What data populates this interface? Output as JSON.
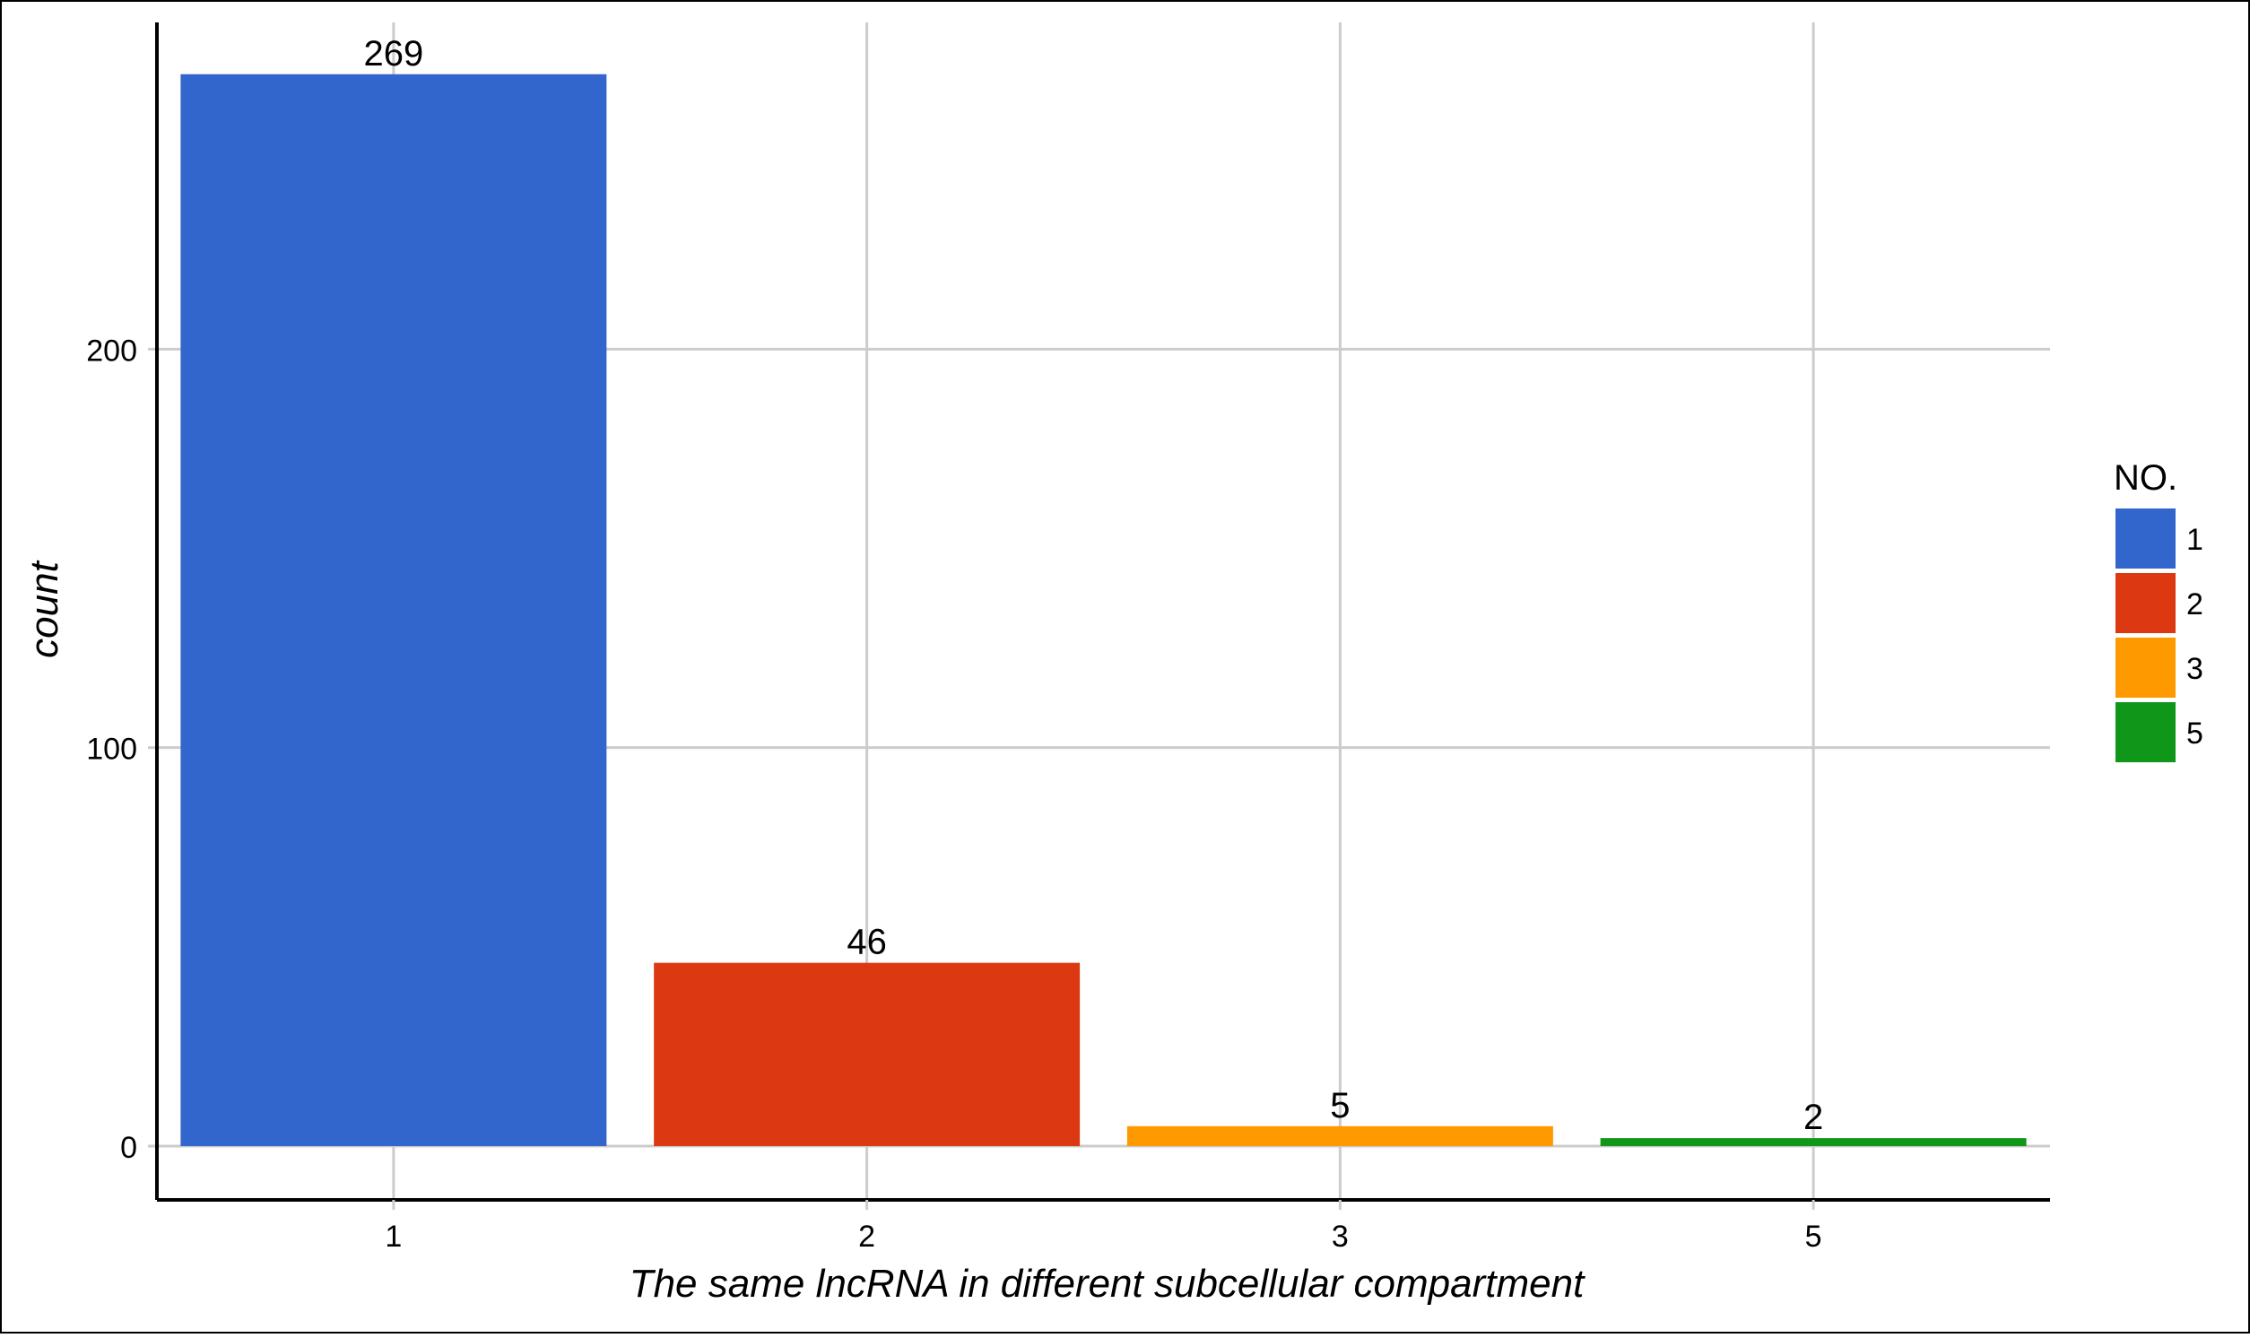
{
  "chart_data": {
    "type": "bar",
    "categories": [
      "1",
      "2",
      "3",
      "5"
    ],
    "values": [
      269,
      46,
      5,
      2
    ],
    "data_labels": [
      "269",
      "46",
      "5",
      "2"
    ],
    "colors": [
      "#3366cc",
      "#dc3912",
      "#ff9900",
      "#109618"
    ],
    "xlabel": "The same lncRNA in different subcellular compartment",
    "ylabel": "count",
    "ylim": [
      -13.5,
      282
    ],
    "yticks": [
      0,
      100,
      200
    ],
    "ytick_labels": [
      "0",
      "100",
      "200"
    ],
    "grid": true,
    "legend": {
      "title": "NO.",
      "position": "right",
      "entries": [
        "1",
        "2",
        "3",
        "5"
      ]
    }
  },
  "colors": {
    "grid": "#cccccc",
    "axis": "#000000",
    "frame": "#000000",
    "text": "#000000",
    "background": "#ffffff"
  }
}
